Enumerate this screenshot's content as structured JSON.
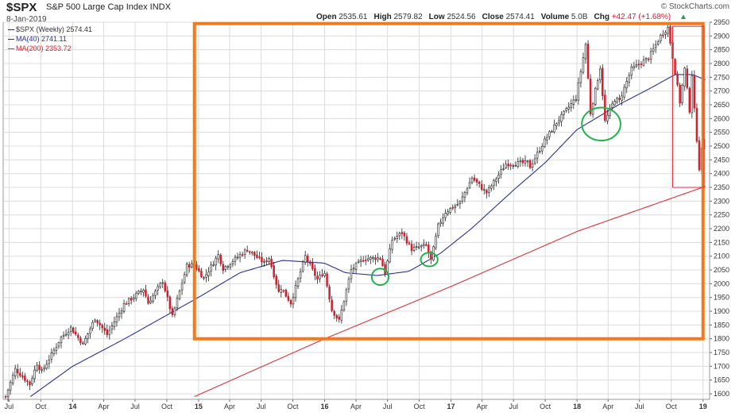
{
  "header": {
    "symbol": "$SPX",
    "name": "S&P 500 Large Cap Index INDX",
    "date": "8-Jan-2019",
    "ohlc": [
      {
        "label": "Open",
        "value": "2535.61"
      },
      {
        "label": "High",
        "value": "2579.82"
      },
      {
        "label": "Low",
        "value": "2524.56"
      },
      {
        "label": "Close",
        "value": "2574.41"
      },
      {
        "label": "Volume",
        "value": "5.0B"
      },
      {
        "label": "Chg",
        "value": "+42.47 (+1.68%)"
      }
    ],
    "watermark": "© StockCharts.com",
    "chg_arrow": "▲"
  },
  "legend": {
    "price": "$SPX (Weekly) 2574.41",
    "ma40": "MA(40) 2741.11",
    "ma200": "MA(200) 2353.72"
  },
  "colors": {
    "up": "#ffffff",
    "down": "#d21f2b",
    "candle_outline": "#222222",
    "ma40": "#2a3192",
    "ma200": "#e0303a",
    "highlight_box": "#f07a1c",
    "circle": "#22b24c",
    "red_box": "#e0303a",
    "grid": "#dcdcdc"
  },
  "chart_data": {
    "type": "candlestick",
    "title": "$SPX S&P 500 Large Cap Index INDX",
    "xlabel": "",
    "ylabel": "",
    "interval": "weekly",
    "ylim": [
      1580,
      2950
    ],
    "y_ticks": [
      1600,
      1650,
      1700,
      1750,
      1800,
      1850,
      1900,
      1950,
      2000,
      2050,
      2100,
      2150,
      2200,
      2250,
      2300,
      2350,
      2400,
      2450,
      2500,
      2550,
      2600,
      2650,
      2700,
      2750,
      2800,
      2850,
      2900,
      2950
    ],
    "x_ticks": [
      {
        "label": "Jul",
        "date": "2013-07-01"
      },
      {
        "label": "Oct",
        "date": "2013-10-01"
      },
      {
        "label": "14",
        "date": "2014-01-01"
      },
      {
        "label": "Apr",
        "date": "2014-04-01"
      },
      {
        "label": "Jul",
        "date": "2014-07-01"
      },
      {
        "label": "Oct",
        "date": "2014-10-01"
      },
      {
        "label": "15",
        "date": "2015-01-01"
      },
      {
        "label": "Apr",
        "date": "2015-04-01"
      },
      {
        "label": "Jul",
        "date": "2015-07-01"
      },
      {
        "label": "Oct",
        "date": "2015-10-01"
      },
      {
        "label": "16",
        "date": "2016-01-01"
      },
      {
        "label": "Apr",
        "date": "2016-04-01"
      },
      {
        "label": "Jul",
        "date": "2016-07-01"
      },
      {
        "label": "Oct",
        "date": "2016-10-01"
      },
      {
        "label": "17",
        "date": "2017-01-01"
      },
      {
        "label": "Apr",
        "date": "2017-04-01"
      },
      {
        "label": "Jul",
        "date": "2017-07-01"
      },
      {
        "label": "Oct",
        "date": "2017-10-01"
      },
      {
        "label": "18",
        "date": "2018-01-01"
      },
      {
        "label": "Apr",
        "date": "2018-04-01"
      },
      {
        "label": "Jul",
        "date": "2018-07-01"
      },
      {
        "label": "Oct",
        "date": "2018-10-01"
      },
      {
        "label": "19",
        "date": "2019-01-01"
      }
    ],
    "close_anchors": [
      [
        "2013-06-21",
        1590
      ],
      [
        "2013-07-19",
        1690
      ],
      [
        "2013-08-30",
        1635
      ],
      [
        "2013-09-20",
        1710
      ],
      [
        "2013-10-04",
        1680
      ],
      [
        "2013-11-29",
        1805
      ],
      [
        "2013-12-27",
        1840
      ],
      [
        "2014-01-31",
        1780
      ],
      [
        "2014-03-07",
        1875
      ],
      [
        "2014-04-11",
        1815
      ],
      [
        "2014-05-30",
        1925
      ],
      [
        "2014-07-25",
        1980
      ],
      [
        "2014-08-08",
        1930
      ],
      [
        "2014-09-19",
        2010
      ],
      [
        "2014-10-17",
        1880
      ],
      [
        "2014-11-28",
        2065
      ],
      [
        "2014-12-19",
        2070
      ],
      [
        "2015-01-16",
        2020
      ],
      [
        "2015-02-27",
        2105
      ],
      [
        "2015-03-13",
        2055
      ],
      [
        "2015-05-22",
        2125
      ],
      [
        "2015-07-10",
        2075
      ],
      [
        "2015-07-24",
        2095
      ],
      [
        "2015-08-21",
        1970
      ],
      [
        "2015-08-28",
        1985
      ],
      [
        "2015-09-25",
        1930
      ],
      [
        "2015-11-06",
        2100
      ],
      [
        "2015-12-11",
        2015
      ],
      [
        "2015-12-31",
        2045
      ],
      [
        "2016-01-22",
        1905
      ],
      [
        "2016-02-12",
        1865
      ],
      [
        "2016-03-18",
        2050
      ],
      [
        "2016-04-22",
        2090
      ],
      [
        "2016-06-10",
        2095
      ],
      [
        "2016-06-24",
        2040
      ],
      [
        "2016-07-15",
        2160
      ],
      [
        "2016-08-12",
        2185
      ],
      [
        "2016-09-09",
        2125
      ],
      [
        "2016-10-21",
        2140
      ],
      [
        "2016-11-04",
        2085
      ],
      [
        "2016-11-25",
        2210
      ],
      [
        "2016-12-16",
        2260
      ],
      [
        "2017-01-27",
        2295
      ],
      [
        "2017-03-03",
        2385
      ],
      [
        "2017-04-14",
        2330
      ],
      [
        "2017-06-09",
        2435
      ],
      [
        "2017-08-11",
        2440
      ],
      [
        "2017-08-18",
        2425
      ],
      [
        "2017-09-29",
        2520
      ],
      [
        "2017-11-03",
        2585
      ],
      [
        "2017-12-29",
        2675
      ],
      [
        "2018-01-26",
        2870
      ],
      [
        "2018-02-09",
        2620
      ],
      [
        "2018-03-09",
        2785
      ],
      [
        "2018-03-23",
        2590
      ],
      [
        "2018-04-20",
        2670
      ],
      [
        "2018-05-04",
        2665
      ],
      [
        "2018-06-08",
        2780
      ],
      [
        "2018-07-27",
        2820
      ],
      [
        "2018-08-31",
        2900
      ],
      [
        "2018-09-21",
        2930
      ],
      [
        "2018-10-12",
        2770
      ],
      [
        "2018-10-26",
        2660
      ],
      [
        "2018-11-09",
        2780
      ],
      [
        "2018-11-23",
        2630
      ],
      [
        "2018-11-30",
        2760
      ],
      [
        "2018-12-07",
        2630
      ],
      [
        "2018-12-21",
        2420
      ],
      [
        "2018-12-28",
        2485
      ],
      [
        "2019-01-04",
        2530
      ],
      [
        "2019-01-08",
        2574.41
      ]
    ],
    "ma40_anchors": [
      [
        "2013-09-01",
        1590
      ],
      [
        "2014-01-01",
        1700
      ],
      [
        "2014-06-01",
        1800
      ],
      [
        "2014-12-31",
        1950
      ],
      [
        "2015-05-01",
        2040
      ],
      [
        "2015-09-01",
        2085
      ],
      [
        "2015-12-31",
        2075
      ],
      [
        "2016-03-01",
        2040
      ],
      [
        "2016-06-01",
        2030
      ],
      [
        "2016-09-01",
        2045
      ],
      [
        "2016-12-01",
        2110
      ],
      [
        "2017-03-01",
        2200
      ],
      [
        "2017-07-01",
        2340
      ],
      [
        "2017-10-01",
        2440
      ],
      [
        "2018-01-01",
        2560
      ],
      [
        "2018-05-01",
        2650
      ],
      [
        "2018-08-01",
        2710
      ],
      [
        "2018-10-12",
        2760
      ],
      [
        "2018-12-01",
        2760
      ],
      [
        "2019-01-08",
        2741.11
      ]
    ],
    "ma200_anchors": [
      [
        "2014-12-20",
        1590
      ],
      [
        "2016-01-01",
        1800
      ],
      [
        "2017-01-01",
        1990
      ],
      [
        "2018-01-01",
        2190
      ],
      [
        "2019-01-08",
        2353.72
      ]
    ],
    "annotations": [
      {
        "type": "rectangle",
        "color": "orange",
        "x0": "2014-12-20",
        "x1": "2019-01-01",
        "y0": 1800,
        "y1": 2945
      },
      {
        "type": "ellipse",
        "color": "green",
        "cx": "2016-06-10",
        "cy": "2025",
        "rx_weeks": 3.5,
        "ry": 30
      },
      {
        "type": "ellipse",
        "color": "green",
        "cx": "2016-10-30",
        "cy": "2088",
        "rx_weeks": 3.5,
        "ry": 25
      },
      {
        "type": "ellipse",
        "color": "green",
        "cx": "2018-03-12",
        "cy": "2580",
        "rx_weeks": 8,
        "ry": 60
      },
      {
        "type": "rectangle",
        "color": "red",
        "x0": "2018-10-05",
        "x1": "2019-01-04",
        "y0": 2350,
        "y1": 2935
      }
    ],
    "grid": true,
    "legend_position": "top-left"
  }
}
